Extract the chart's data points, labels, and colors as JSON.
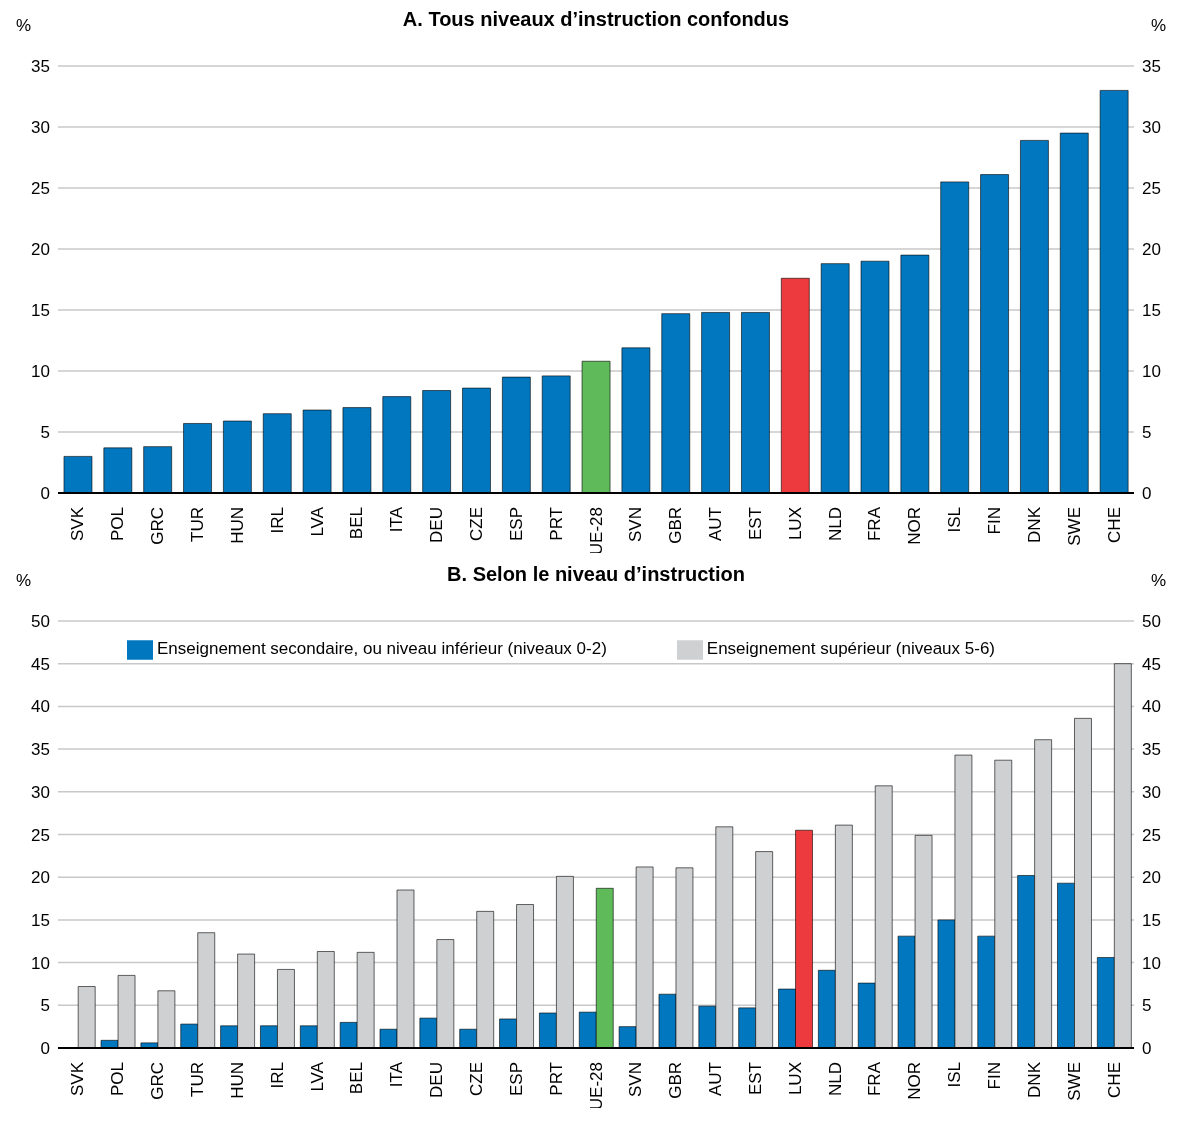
{
  "chart_data": [
    {
      "type": "bar",
      "title": "A. Tous niveaux d’instruction confondus",
      "ylabel": "%",
      "y2label": "%",
      "categories": [
        "SVK",
        "POL",
        "GRC",
        "TUR",
        "HUN",
        "IRL",
        "LVA",
        "BEL",
        "ITA",
        "DEU",
        "CZE",
        "ESP",
        "PRT",
        "UE-28",
        "SVN",
        "GBR",
        "AUT",
        "EST",
        "LUX",
        "NLD",
        "FRA",
        "NOR",
        "ISL",
        "FIN",
        "DNK",
        "SWE",
        "CHE"
      ],
      "values": [
        3.0,
        3.7,
        3.8,
        5.7,
        5.9,
        6.5,
        6.8,
        7.0,
        7.9,
        8.4,
        8.6,
        9.5,
        9.6,
        10.8,
        11.9,
        14.7,
        14.8,
        14.8,
        17.6,
        18.8,
        19.0,
        19.5,
        25.5,
        26.1,
        28.9,
        29.5,
        33.0
      ],
      "colors": [
        "#0077bf",
        "#0077bf",
        "#0077bf",
        "#0077bf",
        "#0077bf",
        "#0077bf",
        "#0077bf",
        "#0077bf",
        "#0077bf",
        "#0077bf",
        "#0077bf",
        "#0077bf",
        "#0077bf",
        "#5fba5a",
        "#0077bf",
        "#0077bf",
        "#0077bf",
        "#0077bf",
        "#ec3a3f",
        "#0077bf",
        "#0077bf",
        "#0077bf",
        "#0077bf",
        "#0077bf",
        "#0077bf",
        "#0077bf",
        "#0077bf"
      ],
      "ylim": [
        0,
        35
      ],
      "yticks": [
        0,
        5,
        10,
        15,
        20,
        25,
        30,
        35
      ],
      "y2lim": [
        0,
        35
      ],
      "y2ticks": [
        0,
        5,
        10,
        15,
        20,
        25,
        30,
        35
      ],
      "grid": "y"
    },
    {
      "type": "bar",
      "title": "B. Selon le niveau d’instruction",
      "ylabel": "%",
      "y2label": "%",
      "categories": [
        "SVK",
        "POL",
        "GRC",
        "TUR",
        "HUN",
        "IRL",
        "LVA",
        "BEL",
        "ITA",
        "DEU",
        "CZE",
        "ESP",
        "PRT",
        "UE-28",
        "SVN",
        "GBR",
        "AUT",
        "EST",
        "LUX",
        "NLD",
        "FRA",
        "NOR",
        "ISL",
        "FIN",
        "DNK",
        "SWE",
        "CHE"
      ],
      "series": [
        {
          "name": "Enseignement secondaire, ou niveau inférieur (niveaux 0-2)",
          "color": "#0077bf",
          "values": [
            null,
            0.9,
            0.6,
            2.8,
            2.6,
            2.6,
            2.6,
            3.0,
            2.2,
            3.5,
            2.2,
            3.4,
            4.1,
            4.2,
            2.5,
            6.3,
            4.9,
            4.7,
            6.9,
            9.1,
            7.6,
            13.1,
            15.0,
            13.1,
            20.2,
            19.3,
            10.6
          ]
        },
        {
          "name": "Enseignement supérieur (niveaux 5-6)",
          "color": "#cfd0d2",
          "colors": [
            "#cfd0d2",
            "#cfd0d2",
            "#cfd0d2",
            "#cfd0d2",
            "#cfd0d2",
            "#cfd0d2",
            "#cfd0d2",
            "#cfd0d2",
            "#cfd0d2",
            "#cfd0d2",
            "#cfd0d2",
            "#cfd0d2",
            "#cfd0d2",
            "#5fba5a",
            "#cfd0d2",
            "#cfd0d2",
            "#cfd0d2",
            "#cfd0d2",
            "#ec3a3f",
            "#cfd0d2",
            "#cfd0d2",
            "#cfd0d2",
            "#cfd0d2",
            "#cfd0d2",
            "#cfd0d2",
            "#cfd0d2",
            "#cfd0d2"
          ],
          "values": [
            7.2,
            8.5,
            6.7,
            13.5,
            11.0,
            9.2,
            11.3,
            11.2,
            18.5,
            12.7,
            16.0,
            16.8,
            20.1,
            18.7,
            21.2,
            21.1,
            25.9,
            23.0,
            25.5,
            26.1,
            30.7,
            24.9,
            34.3,
            33.7,
            36.1,
            38.6,
            45.0
          ]
        }
      ],
      "ylim": [
        0,
        50
      ],
      "yticks": [
        0,
        5,
        10,
        15,
        20,
        25,
        30,
        35,
        40,
        45,
        50
      ],
      "y2lim": [
        0,
        50
      ],
      "y2ticks": [
        0,
        5,
        10,
        15,
        20,
        25,
        30,
        35,
        40,
        45,
        50
      ],
      "grid": "y",
      "legend": "top"
    }
  ]
}
